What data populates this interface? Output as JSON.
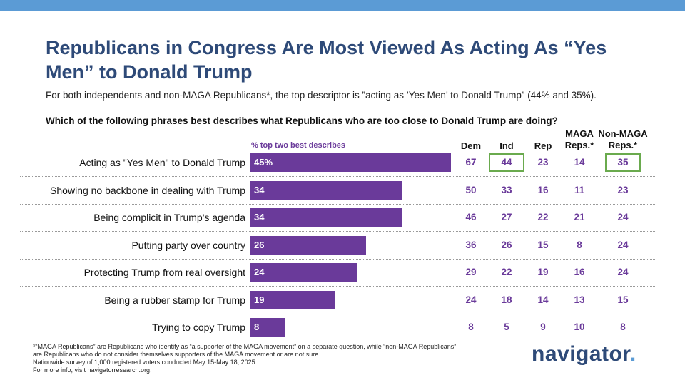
{
  "title": "Republicans in Congress Are Most Viewed As Acting As “Yes Men” to Donald Trump",
  "subtitle": "For both independents and non-MAGA Republicans*, the top descriptor is ”acting as ’Yes Men’ to Donald Trump” (44% and 35%).",
  "question": "Which of the following phrases best describes what Republicans who are too close to Donald Trump are doing?",
  "chart_data": {
    "type": "bar",
    "orientation": "horizontal",
    "series_label": "% top two best describes",
    "categories": [
      "Acting as \"Yes Men\" to Donald Trump",
      "Showing no backbone in dealing with Trump",
      "Being complicit in Trump's agenda",
      "Putting party over country",
      "Protecting Trump from real oversight",
      "Being a rubber stamp for Trump",
      "Trying to copy Trump"
    ],
    "values": [
      45,
      34,
      34,
      26,
      24,
      19,
      8
    ],
    "value_labels": [
      "45%",
      "34",
      "34",
      "26",
      "24",
      "19",
      "8"
    ],
    "xlim": [
      0,
      50
    ],
    "table": {
      "columns": [
        {
          "key": "dem",
          "label": "Dem"
        },
        {
          "key": "ind",
          "label": "Ind"
        },
        {
          "key": "rep",
          "label": "Rep"
        },
        {
          "key": "maga",
          "label": "MAGA Reps.*"
        },
        {
          "key": "nonmaga",
          "label": "Non-MAGA Reps.*"
        }
      ],
      "rows": [
        [
          67,
          44,
          23,
          14,
          35
        ],
        [
          50,
          33,
          16,
          11,
          23
        ],
        [
          46,
          27,
          22,
          21,
          24
        ],
        [
          36,
          26,
          15,
          8,
          24
        ],
        [
          29,
          22,
          19,
          16,
          24
        ],
        [
          24,
          18,
          14,
          13,
          15
        ],
        [
          8,
          5,
          9,
          10,
          8
        ]
      ],
      "highlighted": [
        [
          0,
          1
        ],
        [
          0,
          4
        ]
      ]
    },
    "colors": {
      "bar": "#6a3a9a",
      "highlight": "#6aaa4e"
    }
  },
  "col_heads": {
    "dem": "Dem",
    "ind": "Ind",
    "rep": "Rep",
    "maga_line1": "MAGA",
    "maga_line2": "Reps.*",
    "nonmaga_line1": "Non-MAGA",
    "nonmaga_line2": "Reps.*"
  },
  "footnotes": [
    "*“MAGA Republicans” are Republicans who identify as “a supporter of the MAGA movement” on a separate question, while “non-MAGA Republicans” are Republicans who do not consider themselves supporters of the MAGA movement or are not sure.",
    "Nationwide survey of 1,000 registered voters conducted May 15-May 18, 2025.",
    "For more info, visit navigatorresearch.org."
  ],
  "logo": {
    "text": "navigator",
    "dot": "."
  }
}
